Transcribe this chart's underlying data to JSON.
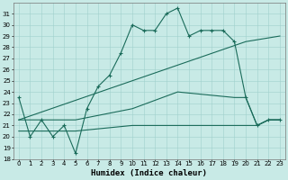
{
  "xlabel": "Humidex (Indice chaleur)",
  "bg_color": "#c8eae6",
  "grid_color": "#a0d0cc",
  "line_color": "#1a6b5a",
  "xlim": [
    -0.5,
    23.5
  ],
  "ylim": [
    18,
    32
  ],
  "yticks": [
    18,
    19,
    20,
    21,
    22,
    23,
    24,
    25,
    26,
    27,
    28,
    29,
    30,
    31
  ],
  "xticks": [
    0,
    1,
    2,
    3,
    4,
    5,
    6,
    7,
    8,
    9,
    10,
    11,
    12,
    13,
    14,
    15,
    16,
    17,
    18,
    19,
    20,
    21,
    22,
    23
  ],
  "line1_x": [
    0,
    1,
    2,
    3,
    4,
    5,
    6,
    7,
    8,
    9,
    10,
    11,
    12,
    13,
    14,
    15,
    16,
    17,
    18,
    19,
    20,
    21,
    22,
    23
  ],
  "line1_y": [
    23.5,
    20.0,
    21.5,
    20.0,
    21.0,
    18.5,
    22.5,
    24.5,
    25.5,
    27.5,
    30.0,
    29.5,
    29.5,
    31.0,
    31.5,
    29.0,
    29.5,
    29.5,
    29.5,
    28.5,
    23.5,
    21.0,
    21.5,
    21.5
  ],
  "line2_x": [
    0,
    20,
    23
  ],
  "line2_y": [
    21.5,
    28.5,
    29.0
  ],
  "line3_x": [
    0,
    5,
    10,
    14,
    19,
    20,
    21,
    22,
    23
  ],
  "line3_y": [
    21.5,
    21.5,
    22.5,
    24.0,
    23.5,
    23.5,
    21.0,
    21.5,
    21.5
  ],
  "line4_x": [
    0,
    5,
    10,
    13,
    14,
    20,
    21,
    22,
    23
  ],
  "line4_y": [
    20.5,
    20.5,
    21.0,
    21.0,
    21.0,
    21.0,
    21.0,
    21.5,
    21.5
  ],
  "markersize": 3,
  "linewidth": 0.8,
  "tick_fontsize": 5,
  "axis_fontsize": 6.5
}
